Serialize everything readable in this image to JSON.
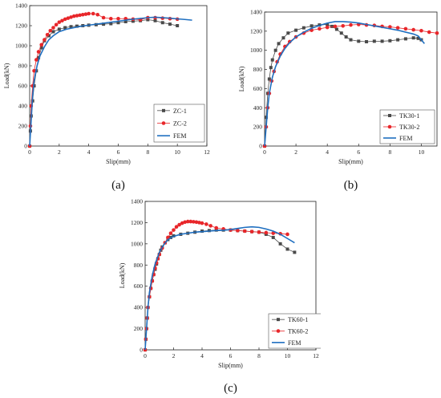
{
  "chart_data": [
    {
      "type": "line",
      "caption": "(a)",
      "xlabel": "Slip(mm)",
      "ylabel": "Load(kN)",
      "xlim": [
        0,
        12
      ],
      "ylim": [
        0,
        1400
      ],
      "xticks": [
        0,
        2,
        4,
        6,
        8,
        10,
        12
      ],
      "yticks": [
        0,
        200,
        400,
        600,
        800,
        1000,
        1200,
        1400
      ],
      "legend_position": "bottom-right",
      "grid": false,
      "series": [
        {
          "name": "ZC-1",
          "color": "#4a4a4a",
          "marker": "square",
          "x": [
            0,
            0.05,
            0.1,
            0.2,
            0.3,
            0.45,
            0.6,
            0.8,
            1.0,
            1.3,
            1.6,
            2.0,
            2.4,
            2.8,
            3.2,
            3.6,
            4.0,
            4.5,
            5.0,
            5.5,
            6.0,
            6.5,
            7.0,
            7.5,
            8.0,
            8.5,
            9.0,
            9.5,
            10.0
          ],
          "y": [
            0,
            150,
            300,
            450,
            600,
            750,
            880,
            980,
            1050,
            1100,
            1140,
            1165,
            1180,
            1190,
            1195,
            1200,
            1205,
            1210,
            1215,
            1220,
            1230,
            1240,
            1245,
            1250,
            1260,
            1250,
            1230,
            1215,
            1200
          ]
        },
        {
          "name": "ZC-2",
          "color": "#e8262a",
          "marker": "circle",
          "x": [
            0,
            0.05,
            0.1,
            0.2,
            0.3,
            0.45,
            0.6,
            0.8,
            1.0,
            1.2,
            1.4,
            1.6,
            1.8,
            2.0,
            2.2,
            2.4,
            2.6,
            2.8,
            3.0,
            3.2,
            3.4,
            3.6,
            3.8,
            4.0,
            4.3,
            4.6,
            5.0,
            5.5,
            6.0,
            6.5,
            7.0,
            7.5,
            8.0,
            8.5,
            9.0,
            9.5,
            10.0
          ],
          "y": [
            0,
            200,
            400,
            600,
            750,
            860,
            940,
            1010,
            1060,
            1110,
            1150,
            1180,
            1210,
            1235,
            1250,
            1265,
            1275,
            1285,
            1295,
            1300,
            1305,
            1310,
            1315,
            1320,
            1320,
            1310,
            1280,
            1270,
            1270,
            1270,
            1265,
            1260,
            1280,
            1280,
            1275,
            1270,
            1265
          ]
        },
        {
          "name": "FEM",
          "color": "#1f6fc0",
          "marker": "none",
          "x": [
            0,
            0.1,
            0.2,
            0.3,
            0.5,
            0.7,
            1.0,
            1.3,
            1.6,
            2.0,
            2.5,
            3.0,
            3.5,
            4.0,
            4.5,
            5.0,
            5.5,
            6.0,
            6.5,
            7.0,
            7.5,
            8.0,
            8.5,
            9.0,
            9.5,
            10.0,
            10.5,
            11.0
          ],
          "y": [
            0,
            250,
            500,
            650,
            800,
            900,
            990,
            1060,
            1100,
            1140,
            1165,
            1180,
            1195,
            1205,
            1215,
            1225,
            1235,
            1245,
            1255,
            1265,
            1272,
            1280,
            1285,
            1280,
            1275,
            1268,
            1262,
            1255
          ]
        }
      ]
    },
    {
      "type": "line",
      "caption": "(b)",
      "xlabel": "Slip(mm)",
      "ylabel": "Load(kN)",
      "xlim": [
        0,
        11
      ],
      "ylim": [
        0,
        1400
      ],
      "xticks": [
        0,
        2,
        4,
        6,
        8,
        10
      ],
      "yticks": [
        0,
        200,
        400,
        600,
        800,
        1000,
        1200,
        1400
      ],
      "legend_position": "bottom-right",
      "grid": false,
      "series": [
        {
          "name": "TK30-1",
          "color": "#4a4a4a",
          "marker": "square",
          "x": [
            0,
            0.1,
            0.2,
            0.3,
            0.4,
            0.5,
            0.7,
            0.9,
            1.2,
            1.5,
            2.0,
            2.5,
            3.0,
            3.5,
            4.0,
            4.3,
            4.6,
            4.9,
            5.2,
            5.5,
            6.0,
            6.5,
            7.0,
            7.5,
            8.0,
            8.5,
            9.0,
            9.5,
            9.8,
            10.0
          ],
          "y": [
            0,
            300,
            550,
            700,
            820,
            900,
            1000,
            1070,
            1130,
            1180,
            1210,
            1235,
            1255,
            1265,
            1270,
            1250,
            1220,
            1180,
            1140,
            1110,
            1095,
            1090,
            1095,
            1095,
            1100,
            1110,
            1120,
            1130,
            1125,
            1110
          ]
        },
        {
          "name": "TK30-2",
          "color": "#e8262a",
          "marker": "circle",
          "x": [
            0,
            0.1,
            0.2,
            0.3,
            0.45,
            0.6,
            0.8,
            1.0,
            1.3,
            1.6,
            2.0,
            2.5,
            3.0,
            3.5,
            4.0,
            4.5,
            5.0,
            5.5,
            6.0,
            6.5,
            7.0,
            7.5,
            8.0,
            8.5,
            9.0,
            9.5,
            10.0,
            10.5,
            11.0
          ],
          "y": [
            0,
            200,
            400,
            550,
            680,
            780,
            880,
            960,
            1040,
            1090,
            1140,
            1180,
            1210,
            1225,
            1240,
            1250,
            1255,
            1265,
            1270,
            1265,
            1260,
            1250,
            1245,
            1235,
            1225,
            1215,
            1205,
            1190,
            1180
          ]
        },
        {
          "name": "FEM",
          "color": "#1f6fc0",
          "marker": "none",
          "x": [
            0,
            0.1,
            0.2,
            0.3,
            0.5,
            0.7,
            1.0,
            1.3,
            1.6,
            2.0,
            2.5,
            3.0,
            3.5,
            4.0,
            4.5,
            5.0,
            5.5,
            6.0,
            6.5,
            7.0,
            7.5,
            8.0,
            8.5,
            9.0,
            9.5,
            9.8,
            10.0,
            10.2
          ],
          "y": [
            0,
            200,
            400,
            550,
            720,
            830,
            940,
            1020,
            1080,
            1140,
            1190,
            1230,
            1260,
            1285,
            1300,
            1300,
            1295,
            1285,
            1270,
            1255,
            1240,
            1225,
            1210,
            1190,
            1170,
            1150,
            1110,
            1070
          ]
        }
      ]
    },
    {
      "type": "line",
      "caption": "(c)",
      "xlabel": "Slip(mm)",
      "ylabel": "Load(kN)",
      "xlim": [
        0,
        12
      ],
      "ylim": [
        0,
        1400
      ],
      "xticks": [
        0,
        2,
        4,
        6,
        8,
        10,
        12
      ],
      "yticks": [
        0,
        200,
        400,
        600,
        800,
        1000,
        1200,
        1400
      ],
      "legend_position": "bottom-right",
      "grid": false,
      "series": [
        {
          "name": "TK60-1",
          "color": "#4a4a4a",
          "marker": "square",
          "x": [
            0,
            0.05,
            0.1,
            0.15,
            0.2,
            0.3,
            0.4,
            0.5,
            0.6,
            0.7,
            0.8,
            0.9,
            1.0,
            1.1,
            1.2,
            1.4,
            1.6,
            1.8,
            2.0,
            2.5,
            3.0,
            3.5,
            4.0,
            4.5,
            5.0,
            5.5,
            6.0,
            6.5,
            7.0,
            7.5,
            8.0,
            8.5,
            9.0,
            9.5,
            10.0,
            10.5
          ],
          "y": [
            0,
            100,
            200,
            300,
            400,
            500,
            580,
            650,
            710,
            760,
            810,
            860,
            900,
            940,
            970,
            1010,
            1040,
            1060,
            1075,
            1090,
            1100,
            1110,
            1120,
            1125,
            1130,
            1130,
            1130,
            1125,
            1120,
            1115,
            1110,
            1090,
            1060,
            1000,
            950,
            920
          ]
        },
        {
          "name": "TK60-2",
          "color": "#e8262a",
          "marker": "circle",
          "x": [
            0,
            0.05,
            0.1,
            0.15,
            0.2,
            0.3,
            0.4,
            0.5,
            0.6,
            0.7,
            0.8,
            0.9,
            1.0,
            1.2,
            1.4,
            1.6,
            1.8,
            2.0,
            2.2,
            2.4,
            2.6,
            2.8,
            3.0,
            3.2,
            3.4,
            3.6,
            3.8,
            4.0,
            4.3,
            4.6,
            5.0,
            5.5,
            6.0,
            6.5,
            7.0,
            7.5,
            8.0,
            8.5,
            9.0,
            9.5,
            10.0
          ],
          "y": [
            0,
            100,
            200,
            300,
            400,
            500,
            580,
            650,
            710,
            770,
            820,
            860,
            900,
            960,
            1010,
            1060,
            1100,
            1130,
            1160,
            1180,
            1195,
            1205,
            1210,
            1210,
            1208,
            1205,
            1200,
            1195,
            1185,
            1170,
            1150,
            1140,
            1130,
            1125,
            1120,
            1115,
            1110,
            1105,
            1100,
            1095,
            1090
          ]
        },
        {
          "name": "FEM",
          "color": "#1f6fc0",
          "marker": "none",
          "x": [
            0,
            0.1,
            0.2,
            0.3,
            0.5,
            0.7,
            1.0,
            1.3,
            1.6,
            2.0,
            2.5,
            3.0,
            3.5,
            4.0,
            4.5,
            5.0,
            5.5,
            6.0,
            6.5,
            7.0,
            7.5,
            8.0,
            8.5,
            9.0,
            9.5,
            10.0,
            10.5
          ],
          "y": [
            0,
            200,
            400,
            540,
            700,
            810,
            920,
            990,
            1040,
            1070,
            1090,
            1100,
            1110,
            1115,
            1120,
            1125,
            1128,
            1135,
            1145,
            1155,
            1160,
            1155,
            1140,
            1120,
            1090,
            1050,
            1010
          ]
        }
      ]
    }
  ]
}
